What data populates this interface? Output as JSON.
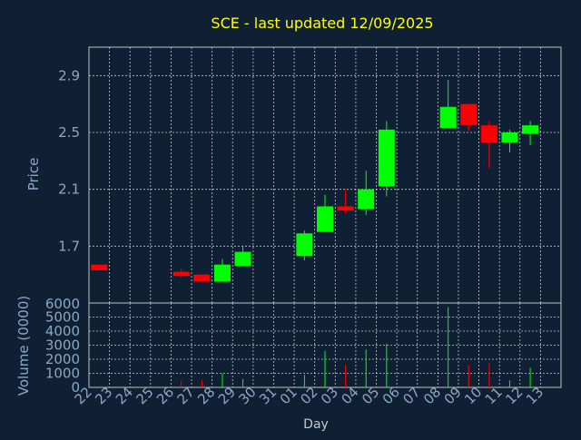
{
  "title": "SCE - last updated 12/09/2025",
  "colors": {
    "background": "#0f2035",
    "up": "#00ff00",
    "down": "#ff0000",
    "title": "#ffff00",
    "axis_text": "#8fa6c2"
  },
  "chart_data": [
    {
      "type": "candlestick",
      "title": "SCE - last updated 12/09/2025",
      "ylabel": "Price",
      "xlabel": "",
      "ylim": [
        1.3,
        3.1
      ],
      "yticks": [
        1.7,
        2.1,
        2.5,
        2.9
      ],
      "grid": true,
      "categories": [
        "22",
        "23",
        "24",
        "25",
        "26",
        "27",
        "28",
        "29",
        "30",
        "31",
        "01",
        "02",
        "03",
        "04",
        "05",
        "06",
        "07",
        "08",
        "09",
        "10",
        "11",
        "12",
        "13"
      ],
      "candles": [
        {
          "x": "22",
          "open": 1.57,
          "close": 1.53,
          "high": 1.57,
          "low": 1.53
        },
        {
          "x": "26",
          "open": 1.52,
          "close": 1.49,
          "high": 1.54,
          "low": 1.48
        },
        {
          "x": "27",
          "open": 1.5,
          "close": 1.45,
          "high": 1.5,
          "low": 1.45
        },
        {
          "x": "28",
          "open": 1.45,
          "close": 1.57,
          "high": 1.61,
          "low": 1.45
        },
        {
          "x": "29",
          "open": 1.56,
          "close": 1.66,
          "high": 1.7,
          "low": 1.56
        },
        {
          "x": "01",
          "open": 1.63,
          "close": 1.79,
          "high": 1.81,
          "low": 1.6
        },
        {
          "x": "02",
          "open": 1.8,
          "close": 1.98,
          "high": 2.06,
          "low": 1.8
        },
        {
          "x": "03",
          "open": 1.98,
          "close": 1.95,
          "high": 2.1,
          "low": 1.93
        },
        {
          "x": "04",
          "open": 1.96,
          "close": 2.1,
          "high": 2.23,
          "low": 1.92
        },
        {
          "x": "05",
          "open": 2.12,
          "close": 2.52,
          "high": 2.58,
          "low": 2.05
        },
        {
          "x": "08",
          "open": 2.53,
          "close": 2.68,
          "high": 2.87,
          "low": 2.53
        },
        {
          "x": "09",
          "open": 2.7,
          "close": 2.55,
          "high": 2.7,
          "low": 2.51
        },
        {
          "x": "10",
          "open": 2.55,
          "close": 2.43,
          "high": 2.58,
          "low": 2.25
        },
        {
          "x": "11",
          "open": 2.43,
          "close": 2.5,
          "high": 2.52,
          "low": 2.36
        },
        {
          "x": "12",
          "open": 2.49,
          "close": 2.55,
          "high": 2.58,
          "low": 2.41
        }
      ]
    },
    {
      "type": "bar",
      "ylabel": "Volume (0000)",
      "xlabel": "Day",
      "ylim": [
        0,
        6000
      ],
      "yticks": [
        0,
        1000,
        2000,
        3000,
        4000,
        5000,
        6000
      ],
      "grid": true,
      "categories": [
        "22",
        "23",
        "24",
        "25",
        "26",
        "27",
        "28",
        "29",
        "30",
        "31",
        "01",
        "02",
        "03",
        "04",
        "05",
        "06",
        "07",
        "08",
        "09",
        "10",
        "11",
        "12",
        "13"
      ],
      "bars": [
        {
          "x": "26",
          "value": 450,
          "direction": "down"
        },
        {
          "x": "27",
          "value": 550,
          "direction": "down"
        },
        {
          "x": "28",
          "value": 1000,
          "direction": "up"
        },
        {
          "x": "29",
          "value": 600,
          "direction": "up"
        },
        {
          "x": "01",
          "value": 900,
          "direction": "up"
        },
        {
          "x": "02",
          "value": 2600,
          "direction": "up"
        },
        {
          "x": "03",
          "value": 1600,
          "direction": "down"
        },
        {
          "x": "04",
          "value": 2700,
          "direction": "up"
        },
        {
          "x": "05",
          "value": 3100,
          "direction": "up"
        },
        {
          "x": "08",
          "value": 5700,
          "direction": "up"
        },
        {
          "x": "09",
          "value": 1600,
          "direction": "down"
        },
        {
          "x": "10",
          "value": 1700,
          "direction": "down"
        },
        {
          "x": "11",
          "value": 500,
          "direction": "up"
        },
        {
          "x": "12",
          "value": 1400,
          "direction": "up"
        }
      ]
    }
  ]
}
